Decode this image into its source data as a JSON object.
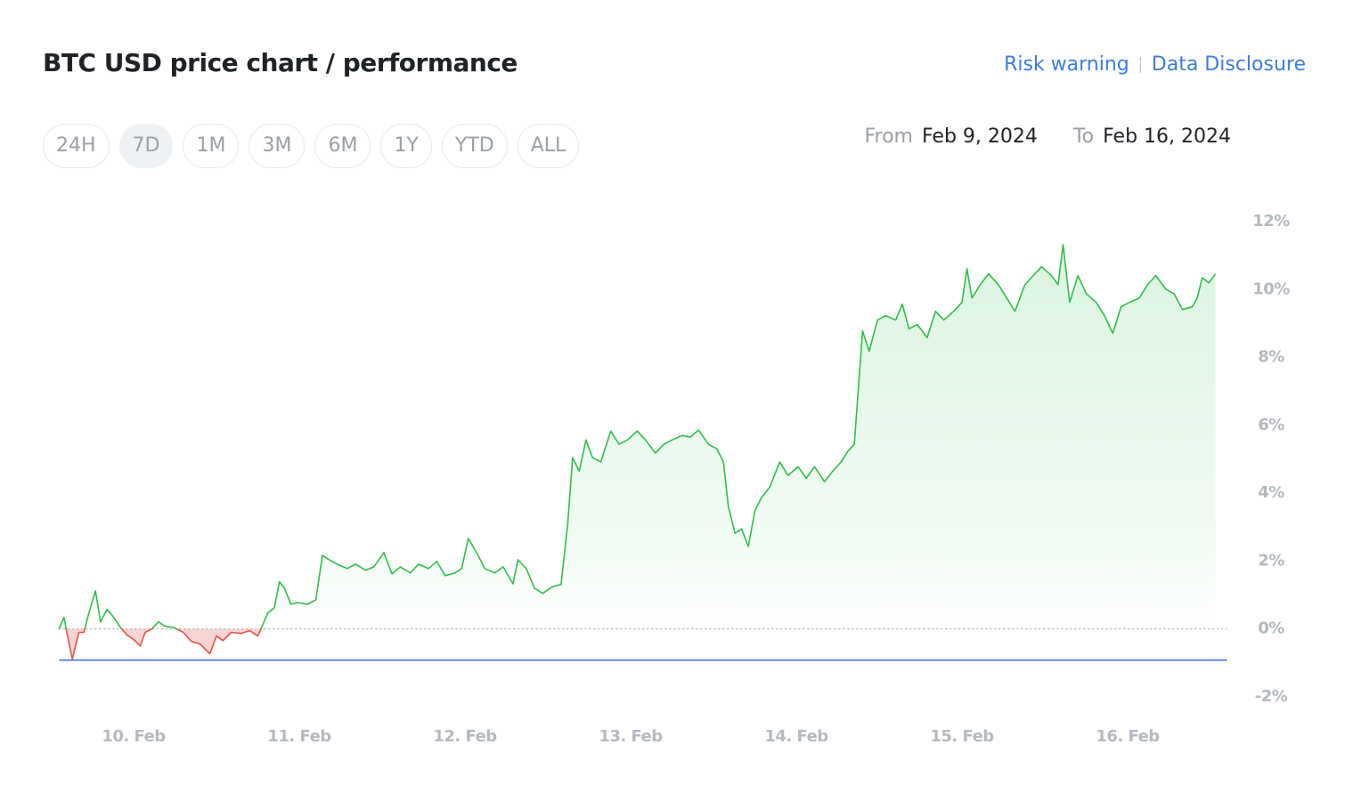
{
  "header": {
    "links": [
      "Risk warning",
      "Data Disclosure"
    ],
    "ranges": [
      "24H",
      "7D",
      "1M",
      "3M",
      "6M",
      "1Y",
      "YTD",
      "ALL"
    ],
    "selected": "7D",
    "from_label": "From",
    "from": "Feb 9, 2024",
    "to_label": "To",
    "to": "Feb 16, 2024"
  },
  "chart_data": {
    "type": "line",
    "title": "BTC USD price chart / performance",
    "x": [
      9.55,
      9.58,
      9.6,
      9.63,
      9.67,
      9.7,
      9.73,
      9.77,
      9.8,
      9.84,
      9.88,
      9.92,
      9.96,
      10.0,
      10.04,
      10.07,
      10.11,
      10.15,
      10.19,
      10.24,
      10.3,
      10.35,
      10.4,
      10.46,
      10.5,
      10.54,
      10.59,
      10.65,
      10.7,
      10.75,
      10.81,
      10.85,
      10.88,
      10.91,
      10.95,
      10.99,
      11.05,
      11.1,
      11.14,
      11.18,
      11.24,
      11.29,
      11.34,
      11.4,
      11.45,
      11.51,
      11.56,
      11.61,
      11.67,
      11.72,
      11.78,
      11.83,
      11.88,
      11.94,
      11.98,
      12.02,
      12.07,
      12.12,
      12.18,
      12.23,
      12.29,
      12.32,
      12.37,
      12.42,
      12.47,
      12.53,
      12.58,
      12.62,
      12.65,
      12.69,
      12.73,
      12.77,
      12.82,
      12.88,
      12.93,
      12.98,
      13.04,
      13.09,
      13.15,
      13.2,
      13.25,
      13.31,
      13.36,
      13.41,
      13.47,
      13.52,
      13.56,
      13.59,
      13.63,
      13.67,
      13.71,
      13.75,
      13.79,
      13.84,
      13.9,
      13.95,
      14.01,
      14.06,
      14.11,
      14.17,
      14.22,
      14.27,
      14.31,
      14.35,
      14.4,
      14.44,
      14.49,
      14.54,
      14.6,
      14.64,
      14.68,
      14.73,
      14.79,
      14.84,
      14.89,
      14.95,
      15.0,
      15.03,
      15.06,
      15.11,
      15.16,
      15.22,
      15.27,
      15.32,
      15.38,
      15.43,
      15.48,
      15.54,
      15.58,
      15.61,
      15.65,
      15.7,
      15.75,
      15.81,
      15.86,
      15.91,
      15.96,
      16.01,
      16.07,
      16.12,
      16.17,
      16.23,
      16.28,
      16.33,
      16.39,
      16.42,
      16.45,
      16.49,
      16.53
    ],
    "values": [
      0,
      0.34,
      -0.18,
      -0.89,
      -0.1,
      -0.1,
      0.47,
      1.12,
      0.21,
      0.58,
      0.34,
      0.05,
      -0.18,
      -0.31,
      -0.5,
      -0.1,
      0,
      0.21,
      0.08,
      0.05,
      -0.1,
      -0.37,
      -0.44,
      -0.73,
      -0.21,
      -0.34,
      -0.1,
      -0.13,
      -0.05,
      -0.21,
      0.47,
      0.63,
      1.39,
      1.2,
      0.73,
      0.78,
      0.73,
      0.86,
      2.17,
      2.04,
      1.88,
      1.78,
      1.91,
      1.73,
      1.83,
      2.25,
      1.62,
      1.83,
      1.65,
      1.91,
      1.78,
      1.99,
      1.57,
      1.65,
      1.78,
      2.67,
      2.25,
      1.78,
      1.65,
      1.83,
      1.33,
      2.04,
      1.78,
      1.2,
      1.05,
      1.25,
      1.31,
      3.08,
      5.05,
      4.65,
      5.57,
      5.05,
      4.92,
      5.83,
      5.44,
      5.57,
      5.83,
      5.57,
      5.18,
      5.44,
      5.57,
      5.7,
      5.65,
      5.86,
      5.44,
      5.31,
      4.92,
      3.61,
      2.82,
      2.95,
      2.43,
      3.48,
      3.87,
      4.18,
      4.92,
      4.52,
      4.78,
      4.44,
      4.78,
      4.34,
      4.65,
      4.92,
      5.23,
      5.44,
      8.78,
      8.18,
      9.1,
      9.23,
      9.1,
      9.57,
      8.84,
      8.97,
      8.58,
      9.36,
      9.1,
      9.36,
      9.62,
      10.61,
      9.75,
      10.14,
      10.46,
      10.14,
      9.75,
      9.36,
      10.14,
      10.41,
      10.67,
      10.41,
      10.14,
      11.32,
      9.62,
      10.41,
      9.88,
      9.62,
      9.23,
      8.71,
      9.49,
      9.62,
      9.75,
      10.14,
      10.41,
      10.01,
      9.88,
      9.41,
      9.49,
      9.75,
      10.35,
      10.2,
      10.46
    ],
    "color": "#2fbf4a",
    "negative_color": "#e5534b",
    "reference_line": -0.92,
    "reference_color": "#3b6fe0",
    "zero_line": true,
    "xlim": [
      9.55,
      16.6
    ],
    "xticks": [
      {
        "value": 10,
        "label": "10. Feb"
      },
      {
        "value": 11,
        "label": "11. Feb"
      },
      {
        "value": 12,
        "label": "12. Feb"
      },
      {
        "value": 13,
        "label": "13. Feb"
      },
      {
        "value": 14,
        "label": "14. Feb"
      },
      {
        "value": 15,
        "label": "15. Feb"
      },
      {
        "value": 16,
        "label": "16. Feb"
      }
    ],
    "ylim": [
      -2,
      12
    ],
    "yticks": [
      {
        "value": -2,
        "label": "-2%"
      },
      {
        "value": 0,
        "label": "0%"
      },
      {
        "value": 2,
        "label": "2%"
      },
      {
        "value": 4,
        "label": "4%"
      },
      {
        "value": 6,
        "label": "6%"
      },
      {
        "value": 8,
        "label": "8%"
      },
      {
        "value": 10,
        "label": "10%"
      },
      {
        "value": 12,
        "label": "12%"
      }
    ]
  }
}
